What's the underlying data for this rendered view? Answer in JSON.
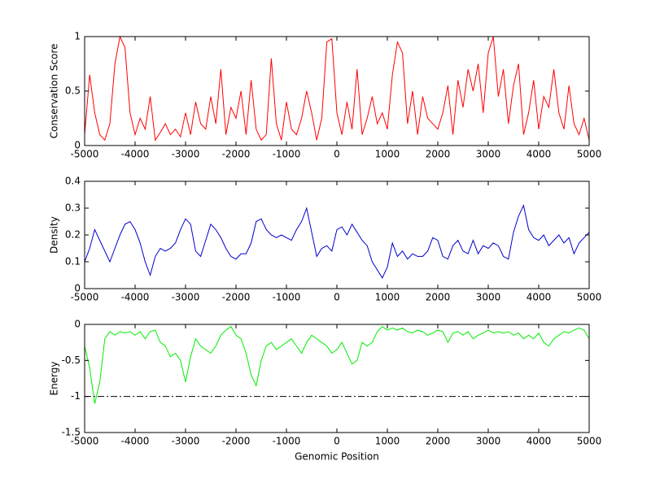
{
  "chart_data": [
    {
      "type": "line",
      "ylabel": "Conservation Score",
      "color": "#ff0000",
      "x": [
        -5000,
        -4900,
        -4800,
        -4700,
        -4600,
        -4500,
        -4400,
        -4300,
        -4200,
        -4100,
        -4000,
        -3900,
        -3800,
        -3700,
        -3600,
        -3500,
        -3400,
        -3300,
        -3200,
        -3100,
        -3000,
        -2900,
        -2800,
        -2700,
        -2600,
        -2500,
        -2400,
        -2300,
        -2200,
        -2100,
        -2000,
        -1900,
        -1800,
        -1700,
        -1600,
        -1500,
        -1400,
        -1300,
        -1200,
        -1100,
        -1000,
        -900,
        -800,
        -700,
        -600,
        -500,
        -400,
        -300,
        -200,
        -100,
        0,
        100,
        200,
        300,
        400,
        500,
        600,
        700,
        800,
        900,
        1000,
        1100,
        1200,
        1300,
        1400,
        1500,
        1600,
        1700,
        1800,
        1900,
        2000,
        2100,
        2200,
        2300,
        2400,
        2500,
        2600,
        2700,
        2800,
        2900,
        3000,
        3100,
        3200,
        3300,
        3400,
        3500,
        3600,
        3700,
        3800,
        3900,
        4000,
        4100,
        4200,
        4300,
        4400,
        4500,
        4600,
        4700,
        4800,
        4900,
        5000
      ],
      "values": [
        0.1,
        0.65,
        0.3,
        0.1,
        0.05,
        0.2,
        0.75,
        1.0,
        0.9,
        0.3,
        0.1,
        0.25,
        0.15,
        0.45,
        0.05,
        0.12,
        0.2,
        0.1,
        0.15,
        0.08,
        0.3,
        0.1,
        0.4,
        0.2,
        0.15,
        0.45,
        0.2,
        0.7,
        0.1,
        0.35,
        0.25,
        0.5,
        0.1,
        0.6,
        0.15,
        0.05,
        0.1,
        0.8,
        0.2,
        0.05,
        0.4,
        0.15,
        0.1,
        0.25,
        0.5,
        0.3,
        0.05,
        0.25,
        0.95,
        0.98,
        0.3,
        0.1,
        0.4,
        0.15,
        0.7,
        0.1,
        0.25,
        0.45,
        0.2,
        0.3,
        0.15,
        0.65,
        0.95,
        0.85,
        0.2,
        0.5,
        0.1,
        0.45,
        0.25,
        0.2,
        0.15,
        0.3,
        0.55,
        0.1,
        0.6,
        0.35,
        0.7,
        0.5,
        0.75,
        0.3,
        0.85,
        1.0,
        0.45,
        0.7,
        0.2,
        0.55,
        0.75,
        0.1,
        0.3,
        0.6,
        0.15,
        0.45,
        0.35,
        0.7,
        0.3,
        0.15,
        0.55,
        0.2,
        0.1,
        0.25,
        0.05
      ],
      "xlim": [
        -5000,
        5000
      ],
      "xticks": [
        -5000,
        -4000,
        -3000,
        -2000,
        -1000,
        0,
        1000,
        2000,
        3000,
        4000,
        5000
      ],
      "ylim": [
        0,
        1
      ],
      "yticks": [
        0,
        0.5,
        1
      ]
    },
    {
      "type": "line",
      "ylabel": "Density",
      "color": "#0000cc",
      "x": [
        -5000,
        -4900,
        -4800,
        -4700,
        -4600,
        -4500,
        -4400,
        -4300,
        -4200,
        -4100,
        -4000,
        -3900,
        -3800,
        -3700,
        -3600,
        -3500,
        -3400,
        -3300,
        -3200,
        -3100,
        -3000,
        -2900,
        -2800,
        -2700,
        -2600,
        -2500,
        -2400,
        -2300,
        -2200,
        -2100,
        -2000,
        -1900,
        -1800,
        -1700,
        -1600,
        -1500,
        -1400,
        -1300,
        -1200,
        -1100,
        -1000,
        -900,
        -800,
        -700,
        -600,
        -500,
        -400,
        -300,
        -200,
        -100,
        0,
        100,
        200,
        300,
        400,
        500,
        600,
        700,
        800,
        900,
        1000,
        1100,
        1200,
        1300,
        1400,
        1500,
        1600,
        1700,
        1800,
        1900,
        2000,
        2100,
        2200,
        2300,
        2400,
        2500,
        2600,
        2700,
        2800,
        2900,
        3000,
        3100,
        3200,
        3300,
        3400,
        3500,
        3600,
        3700,
        3800,
        3900,
        4000,
        4100,
        4200,
        4300,
        4400,
        4500,
        4600,
        4700,
        4800,
        4900,
        5000
      ],
      "values": [
        0.1,
        0.15,
        0.22,
        0.18,
        0.14,
        0.1,
        0.15,
        0.2,
        0.24,
        0.25,
        0.22,
        0.17,
        0.1,
        0.05,
        0.12,
        0.15,
        0.14,
        0.15,
        0.17,
        0.22,
        0.26,
        0.24,
        0.14,
        0.12,
        0.18,
        0.24,
        0.22,
        0.19,
        0.15,
        0.12,
        0.11,
        0.13,
        0.13,
        0.17,
        0.25,
        0.26,
        0.22,
        0.2,
        0.19,
        0.2,
        0.19,
        0.18,
        0.22,
        0.25,
        0.3,
        0.21,
        0.12,
        0.15,
        0.16,
        0.14,
        0.22,
        0.23,
        0.2,
        0.24,
        0.21,
        0.18,
        0.16,
        0.1,
        0.07,
        0.04,
        0.08,
        0.17,
        0.12,
        0.14,
        0.11,
        0.13,
        0.12,
        0.12,
        0.14,
        0.19,
        0.18,
        0.12,
        0.11,
        0.16,
        0.18,
        0.14,
        0.13,
        0.18,
        0.13,
        0.16,
        0.15,
        0.17,
        0.16,
        0.12,
        0.11,
        0.21,
        0.27,
        0.31,
        0.22,
        0.19,
        0.18,
        0.2,
        0.16,
        0.18,
        0.2,
        0.17,
        0.19,
        0.13,
        0.17,
        0.19,
        0.21
      ],
      "xlim": [
        -5000,
        5000
      ],
      "xticks": [
        -5000,
        -4000,
        -3000,
        -2000,
        -1000,
        0,
        1000,
        2000,
        3000,
        4000,
        5000
      ],
      "ylim": [
        0,
        0.4
      ],
      "yticks": [
        0,
        0.1,
        0.2,
        0.3,
        0.4
      ]
    },
    {
      "type": "line",
      "ylabel": "Energy",
      "xlabel": "Genomic Position",
      "color": "#00ee00",
      "x": [
        -5000,
        -4900,
        -4800,
        -4700,
        -4600,
        -4500,
        -4400,
        -4300,
        -4200,
        -4100,
        -4000,
        -3900,
        -3800,
        -3700,
        -3600,
        -3500,
        -3400,
        -3300,
        -3200,
        -3100,
        -3000,
        -2900,
        -2800,
        -2700,
        -2600,
        -2500,
        -2400,
        -2300,
        -2200,
        -2100,
        -2000,
        -1900,
        -1800,
        -1700,
        -1600,
        -1500,
        -1400,
        -1300,
        -1200,
        -1100,
        -1000,
        -900,
        -800,
        -700,
        -600,
        -500,
        -400,
        -300,
        -200,
        -100,
        0,
        100,
        200,
        300,
        400,
        500,
        600,
        700,
        800,
        900,
        1000,
        1100,
        1200,
        1300,
        1400,
        1500,
        1600,
        1700,
        1800,
        1900,
        2000,
        2100,
        2200,
        2300,
        2400,
        2500,
        2600,
        2700,
        2800,
        2900,
        3000,
        3100,
        3200,
        3300,
        3400,
        3500,
        3600,
        3700,
        3800,
        3900,
        4000,
        4100,
        4200,
        4300,
        4400,
        4500,
        4600,
        4700,
        4800,
        4900,
        5000
      ],
      "values": [
        -0.3,
        -0.6,
        -1.1,
        -0.8,
        -0.2,
        -0.1,
        -0.15,
        -0.1,
        -0.12,
        -0.1,
        -0.15,
        -0.1,
        -0.2,
        -0.1,
        -0.08,
        -0.25,
        -0.3,
        -0.45,
        -0.4,
        -0.5,
        -0.8,
        -0.45,
        -0.2,
        -0.3,
        -0.35,
        -0.4,
        -0.3,
        -0.15,
        -0.08,
        -0.03,
        -0.15,
        -0.2,
        -0.4,
        -0.7,
        -0.85,
        -0.5,
        -0.3,
        -0.25,
        -0.35,
        -0.3,
        -0.25,
        -0.2,
        -0.3,
        -0.4,
        -0.25,
        -0.15,
        -0.2,
        -0.25,
        -0.3,
        -0.4,
        -0.35,
        -0.25,
        -0.4,
        -0.55,
        -0.5,
        -0.25,
        -0.3,
        -0.25,
        -0.1,
        -0.03,
        -0.08,
        -0.05,
        -0.08,
        -0.05,
        -0.1,
        -0.12,
        -0.08,
        -0.1,
        -0.15,
        -0.12,
        -0.08,
        -0.1,
        -0.25,
        -0.12,
        -0.1,
        -0.15,
        -0.1,
        -0.2,
        -0.15,
        -0.12,
        -0.08,
        -0.12,
        -0.1,
        -0.12,
        -0.1,
        -0.15,
        -0.12,
        -0.2,
        -0.15,
        -0.2,
        -0.12,
        -0.25,
        -0.3,
        -0.2,
        -0.15,
        -0.1,
        -0.12,
        -0.08,
        -0.05,
        -0.08,
        -0.2
      ],
      "hlines": [
        {
          "value": -1,
          "color": "#000000",
          "dash": "dashdot"
        }
      ],
      "xlim": [
        -5000,
        5000
      ],
      "xticks": [
        -5000,
        -4000,
        -3000,
        -2000,
        -1000,
        0,
        1000,
        2000,
        3000,
        4000,
        5000
      ],
      "ylim": [
        -1.5,
        0
      ],
      "yticks": [
        -1.5,
        -1,
        -0.5,
        0
      ]
    }
  ]
}
